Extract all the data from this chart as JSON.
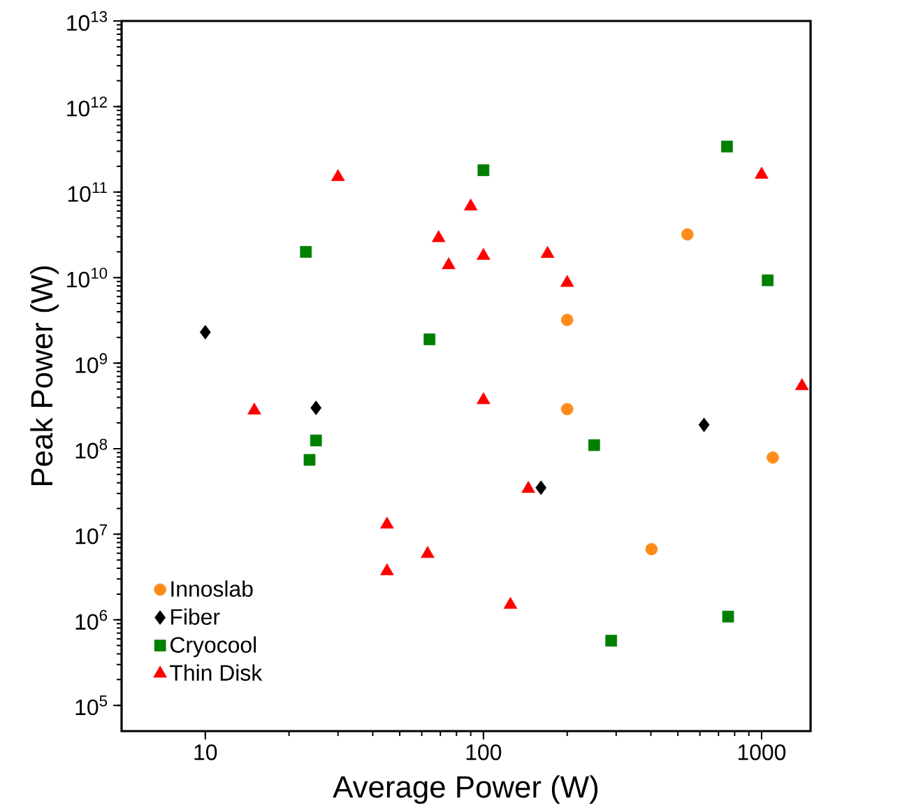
{
  "chart_data": {
    "type": "scatter",
    "xlabel": "Average Power (W)",
    "ylabel": "Peak Power (W)",
    "log": "xy",
    "xlim": [
      5,
      1500
    ],
    "ylim": [
      50000,
      10000000000000.0
    ],
    "xticks": [
      10,
      100,
      1000
    ],
    "yticks": [
      {
        "value": 100000.0,
        "label": "10$^{5}$"
      },
      {
        "value": 1000000.0,
        "label": "10$^{6}$"
      },
      {
        "value": 10000000.0,
        "label": "10$^{7}$"
      },
      {
        "value": 100000000.0,
        "label": "10$^{8}$"
      },
      {
        "value": 1000000000.0,
        "label": "10$^{9}$"
      },
      {
        "value": 10000000000.0,
        "label": "10$^{10}$"
      },
      {
        "value": 100000000000.0,
        "label": "10$^{11}$"
      },
      {
        "value": 1000000000000.0,
        "label": "10$^{12}$"
      },
      {
        "value": 10000000000000.0,
        "label": "10$^{13}$"
      }
    ],
    "grid": false,
    "legend": "bottom left",
    "series": [
      {
        "name": "Innoslab",
        "color": "#ff8c1a",
        "marker": "circle",
        "x": [
          541,
          200,
          200,
          402,
          1097
        ],
        "values": [
          32000000000.0,
          3200000000.0,
          290000000.0,
          6700000.0,
          79000000.0
        ]
      },
      {
        "name": "Fiber",
        "color": "#000000",
        "marker": "diamond",
        "x": [
          10,
          25,
          161,
          621
        ],
        "values": [
          2300000000.0,
          300000000.0,
          35000000.0,
          190000000.0
        ]
      },
      {
        "name": "Cryocool",
        "color": "#008000",
        "marker": "square",
        "x": [
          23,
          100,
          64,
          751,
          1052,
          23.7,
          25,
          250,
          288,
          758
        ],
        "values": [
          20000000000.0,
          180000000000.0,
          1900000000.0,
          340000000000.0,
          9300000000.0,
          74000000.0,
          125000000.0,
          110000000.0,
          570000.0,
          1090000.0
        ]
      },
      {
        "name": "Thin Disk",
        "color": "#ff0000",
        "marker": "triangle",
        "x": [
          30,
          15,
          69,
          75,
          90,
          100,
          100,
          170,
          200,
          1000,
          1397,
          45,
          45,
          63,
          125,
          145
        ],
        "values": [
          150000000000.0,
          280000000.0,
          29000000000.0,
          14000000000.0,
          68000000000.0,
          18000000000.0,
          370000000.0,
          19000000000.0,
          8700000000.0,
          160000000000.0,
          540000000.0,
          13000000.0,
          3700000.0,
          5900000.0,
          1500000.0,
          34000000.0
        ]
      }
    ]
  }
}
